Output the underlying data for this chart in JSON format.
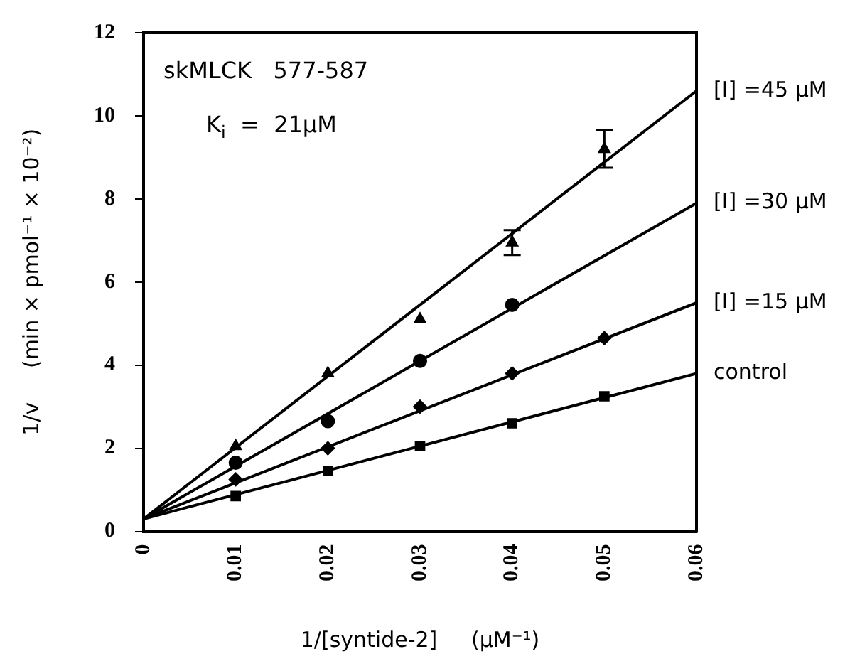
{
  "chart_data": {
    "type": "scatter",
    "xlabel": "1/[syntide-2]     (μM⁻¹)",
    "ylabel": "1/v     (min × pmol⁻¹ × 10⁻²)",
    "xlim": [
      0,
      0.06
    ],
    "xticks": [
      {
        "value": 0,
        "label": "0"
      },
      0.01,
      0.02,
      0.03,
      0.04,
      0.05,
      0.06
    ],
    "ylim": [
      0,
      12
    ],
    "yticks": [
      0,
      2,
      4,
      6,
      8,
      10,
      12
    ],
    "grid": false,
    "legend": false,
    "annotations": [
      "skMLCK   577-587",
      "K$_{i}$  =  21μM"
    ],
    "series": [
      {
        "type": "scatter",
        "color": "#000000",
        "marker": "triangle",
        "x": [
          0.01,
          0.02,
          0.03,
          0.04,
          0.05
        ],
        "values": [
          2.05,
          3.8,
          5.1,
          6.95,
          9.2
        ],
        "errors": [
          null,
          null,
          null,
          0.3,
          0.45
        ]
      },
      {
        "type": "scatter",
        "color": "#000000",
        "marker": "circle",
        "x": [
          0.01,
          0.02,
          0.03,
          0.04
        ],
        "values": [
          1.65,
          2.65,
          4.1,
          5.45
        ]
      },
      {
        "type": "scatter",
        "color": "#000000",
        "marker": "diamond",
        "x": [
          0.01,
          0.02,
          0.03,
          0.04,
          0.05
        ],
        "values": [
          1.25,
          2.0,
          3.0,
          3.8,
          4.65
        ]
      },
      {
        "type": "scatter",
        "color": "#000000",
        "marker": "square",
        "x": [
          0.01,
          0.02,
          0.03,
          0.04,
          0.05
        ],
        "values": [
          0.85,
          1.45,
          2.05,
          2.6,
          3.25
        ]
      },
      {
        "type": "line",
        "name": "[I] =45 μM",
        "color": "#000000",
        "marker": "none",
        "line_style": "solid",
        "x": [
          0,
          0.06
        ],
        "values": [
          0.3,
          10.6
        ]
      },
      {
        "type": "line",
        "name": "[I] =30 μM",
        "color": "#000000",
        "marker": "none",
        "line_style": "solid",
        "x": [
          0,
          0.06
        ],
        "values": [
          0.3,
          7.9
        ]
      },
      {
        "type": "line",
        "name": "[I] =15 μM",
        "color": "#000000",
        "marker": "none",
        "line_style": "solid",
        "x": [
          0,
          0.06
        ],
        "values": [
          0.3,
          5.5
        ]
      },
      {
        "type": "line",
        "name": "control",
        "color": "#000000",
        "marker": "none",
        "line_style": "solid",
        "x": [
          0,
          0.06
        ],
        "values": [
          0.3,
          3.8
        ]
      }
    ]
  }
}
